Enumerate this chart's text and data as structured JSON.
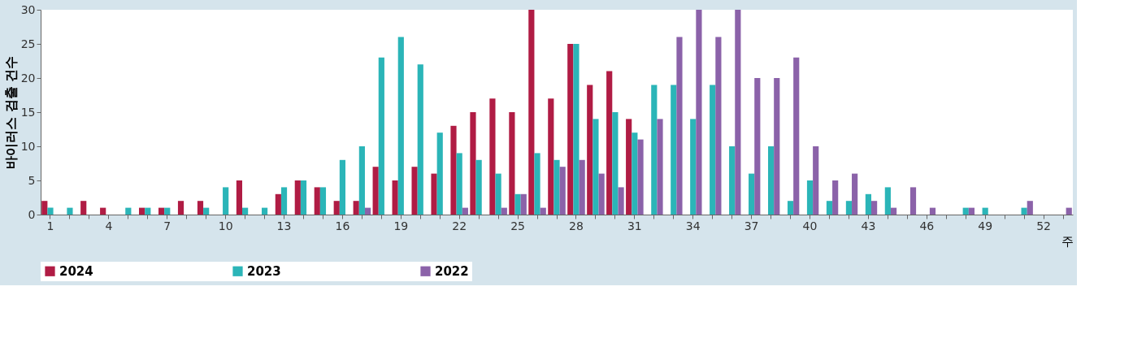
{
  "chart_data": {
    "type": "bar",
    "ylabel": "바이러스 검출 건수",
    "xlabel": "주",
    "categories": [
      "1",
      null,
      null,
      "4",
      null,
      null,
      "7",
      null,
      null,
      "10",
      null,
      null,
      "13",
      null,
      null,
      "16",
      null,
      null,
      "19",
      null,
      null,
      "22",
      null,
      null,
      "25",
      null,
      null,
      "28",
      null,
      null,
      "31",
      null,
      null,
      "34",
      null,
      null,
      "37",
      null,
      null,
      "40",
      null,
      null,
      "43",
      null,
      null,
      "46",
      null,
      null,
      "49",
      null,
      null,
      "52",
      null
    ],
    "series": [
      {
        "name": "2024",
        "color": "#b01c44",
        "values": [
          2,
          0,
          2,
          1,
          0,
          1,
          1,
          2,
          2,
          0,
          5,
          0,
          3,
          5,
          4,
          2,
          2,
          7,
          5,
          7,
          6,
          13,
          15,
          17,
          15,
          30,
          17,
          25,
          19,
          21,
          14,
          null,
          null,
          null,
          null,
          null,
          null,
          null,
          null,
          null,
          null,
          null,
          null,
          null,
          null,
          null,
          null,
          null,
          null,
          null,
          null,
          null,
          null
        ]
      },
      {
        "name": "2023",
        "color": "#2bb5b8",
        "values": [
          1,
          1,
          0,
          0,
          1,
          1,
          1,
          0,
          1,
          4,
          1,
          1,
          4,
          5,
          4,
          8,
          10,
          23,
          26,
          22,
          12,
          9,
          8,
          6,
          3,
          9,
          8,
          25,
          14,
          15,
          12,
          19,
          19,
          14,
          19,
          10,
          6,
          10,
          2,
          5,
          2,
          2,
          3,
          4,
          0,
          0,
          0,
          1,
          1,
          0,
          1,
          0,
          0
        ]
      },
      {
        "name": "2022",
        "color": "#8b62a9",
        "values": [
          0,
          0,
          0,
          0,
          0,
          0,
          0,
          0,
          0,
          0,
          0,
          0,
          0,
          0,
          0,
          0,
          1,
          0,
          0,
          0,
          0,
          1,
          0,
          1,
          3,
          1,
          7,
          8,
          6,
          4,
          11,
          14,
          26,
          30,
          26,
          30,
          20,
          20,
          23,
          10,
          5,
          6,
          2,
          1,
          4,
          1,
          0,
          1,
          0,
          0,
          2,
          0,
          1
        ]
      }
    ],
    "ylim": [
      0,
      30
    ],
    "yticks": [
      0,
      5,
      10,
      15,
      20,
      25,
      30
    ],
    "grid": false,
    "legend": "bottom"
  }
}
